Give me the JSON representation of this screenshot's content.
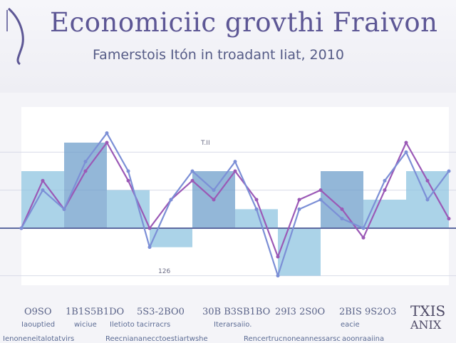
{
  "chart_data": {
    "type": "line",
    "title": "Economiciic grovthi Fraivon",
    "subtitle": "Famerstois Itón in troadant Iiat, 2010",
    "xlabel": "",
    "ylabel": "",
    "grid": true,
    "ylim": [
      -6,
      12
    ],
    "x": [
      0,
      1,
      2,
      3,
      4,
      5,
      6,
      7,
      8,
      9,
      10,
      11,
      12,
      13,
      14,
      15,
      16,
      17,
      18,
      19,
      20
    ],
    "series": [
      {
        "color": "#9b59b6",
        "values": [
          0,
          5,
          2,
          6,
          9,
          5,
          0,
          3,
          5,
          3,
          6,
          3,
          -3,
          3,
          4,
          2,
          -1,
          4,
          9,
          5,
          1
        ]
      },
      {
        "color": "#7c8fd6",
        "values": [
          0,
          4,
          2,
          7,
          10,
          6,
          -2,
          3,
          6,
          4,
          7,
          2,
          -5,
          2,
          3,
          1,
          0,
          5,
          8,
          3,
          6
        ]
      }
    ],
    "bars": [
      {
        "x0": 0,
        "x1": 2,
        "value": 6
      },
      {
        "x0": 2,
        "x1": 4,
        "value": 9
      },
      {
        "x0": 4,
        "x1": 6,
        "value": 4
      },
      {
        "x0": 6,
        "x1": 8,
        "value": -2
      },
      {
        "x0": 8,
        "x1": 10,
        "value": 6
      },
      {
        "x0": 10,
        "x1": 12,
        "value": 2
      },
      {
        "x0": 12,
        "x1": 14,
        "value": -5
      },
      {
        "x0": 14,
        "x1": 16,
        "value": 6
      },
      {
        "x0": 16,
        "x1": 18,
        "value": 3
      },
      {
        "x0": 18,
        "x1": 20,
        "value": 6
      }
    ],
    "annotations": [
      "T.II",
      "126"
    ],
    "xtick_labels": [
      "O9SO",
      "1B1S5B1DO",
      "5S3-2BO0",
      "30B B3SB1BO",
      "29I3 2S0O",
      "2BIS 9S2O3"
    ],
    "x_notes": [
      "Ienoneneitalotatvirs",
      "Iaouptied",
      "wiciue",
      "Iletioto  tacirracrs",
      "Reecniananecctoestiartwshe",
      "Iterarsaiio.",
      "Rencertrucnoneannessarsc",
      "eacie",
      "aoonraaiina"
    ],
    "corner_label": [
      "TXIS",
      "ANIX"
    ],
    "colors": {
      "title": "#5d5795",
      "bar_fill": "#8fc4e0",
      "bar_dark": "#6f9fcb",
      "gridline": "#d8dbe8",
      "zero_line": "#5d6aa0"
    }
  }
}
